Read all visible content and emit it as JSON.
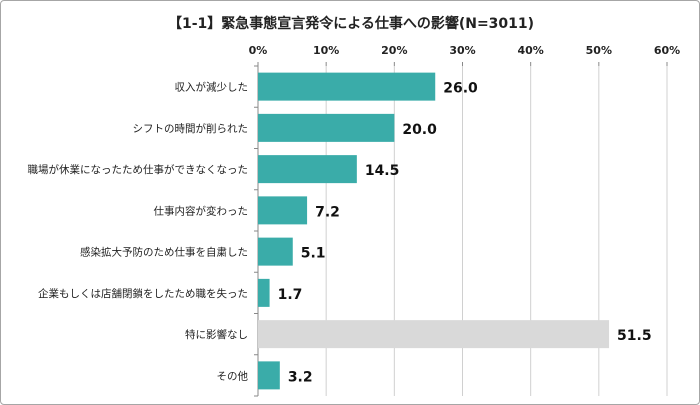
{
  "chart_data": {
    "type": "bar",
    "orientation": "horizontal",
    "title": "【1-1】緊急事態宣言発令による仕事への影響(N=3011)",
    "categories": [
      "収入が減少した",
      "シフトの時間が削られた",
      "職場が休業になったため仕事ができなくなった",
      "仕事内容が変わった",
      "感染拡大予防のため仕事を自粛した",
      "企業もしくは店舗閉鎖をしたため職を失った",
      "特に影響なし",
      "その他"
    ],
    "values": [
      26.0,
      20.0,
      14.5,
      7.2,
      5.1,
      1.7,
      51.5,
      3.2
    ],
    "value_labels": [
      "26.0",
      "20.0",
      "14.5",
      "7.2",
      "5.1",
      "1.7",
      "51.5",
      "3.2"
    ],
    "bar_colors": [
      "#3aaca9",
      "#3aaca9",
      "#3aaca9",
      "#3aaca9",
      "#3aaca9",
      "#3aaca9",
      "#d9d9d9",
      "#3aaca9"
    ],
    "xlim": [
      0,
      60
    ],
    "xticks": [
      "0%",
      "10%",
      "20%",
      "30%",
      "40%",
      "50%",
      "60%"
    ],
    "xaxis_position": "top",
    "grid": true,
    "xlabel": "",
    "ylabel": ""
  }
}
